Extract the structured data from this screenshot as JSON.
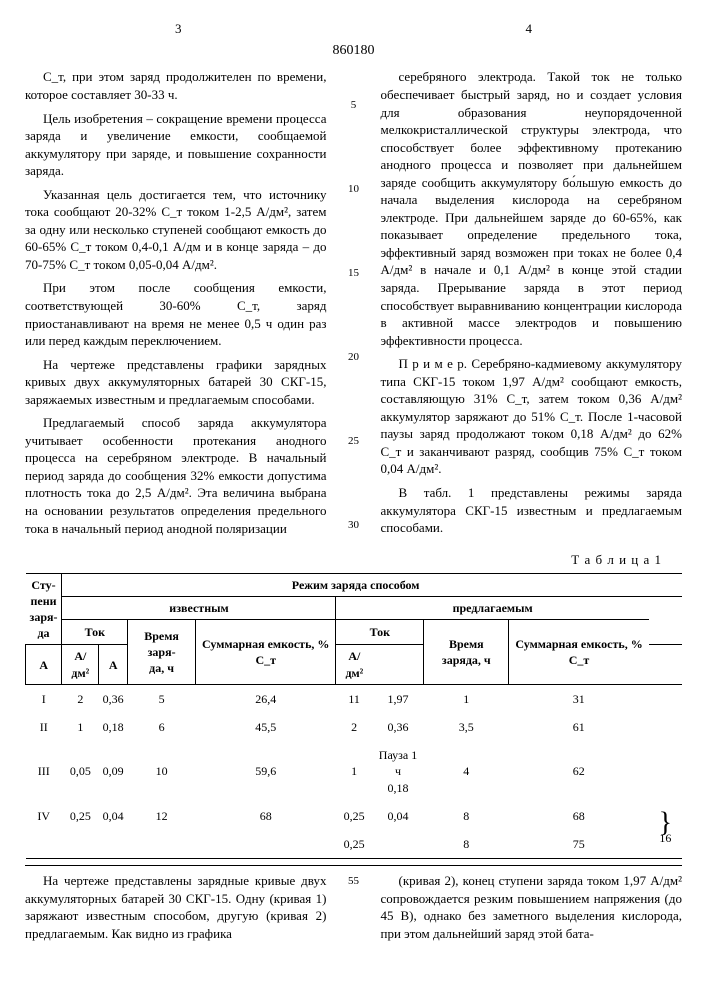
{
  "header": {
    "pageLeft": "3",
    "docNumber": "860180",
    "pageRight": "4"
  },
  "lineNumbers": [
    "5",
    "10",
    "15",
    "20",
    "25",
    "30"
  ],
  "leftCol": {
    "p1": "С_т, при этом заряд продолжителен по времени, которое составляет 30-33 ч.",
    "p2": "Цель изобретения – сокращение времени процесса заряда и увеличение емкости, сообщаемой аккумулятору при заряде, и повышение сохранности заряда.",
    "p3": "Указанная цель достигается тем, что источнику тока сообщают 20-32% С_т током 1-2,5 А/дм², затем за одну или несколько ступеней сообщают емкость до 60-65% С_т током 0,4-0,1 А/дм и в конце заряда – до 70-75% С_т током 0,05-0,04 А/дм².",
    "p4": "При этом после сообщения емкости, соответствующей 30-60% С_т, заряд приостанавливают на время не менее 0,5 ч один раз или перед каждым переключением.",
    "p5": "На чертеже представлены графики зарядных кривых двух аккумуляторных батарей 30 СКГ-15, заряжаемых известным и предлагаемым способами.",
    "p6": "Предлагаемый способ заряда аккумулятора учитывает особенности протекания анодного процесса на серебряном электроде. В начальный период заряда до сообщения 32% емкости допустима плотность тока до 2,5 А/дм². Эта величина выбрана на основании результатов определения предельного тока в начальный период анодной поляризации"
  },
  "rightCol": {
    "p1": "серебряного электрода. Такой ток не только обеспечивает быстрый заряд, но и создает условия для образования неупорядоченной мелкокристаллической структуры электрода, что способствует более эффективному протеканию анодного процесса и позволяет при дальнейшем заряде сообщить аккумулятору бо́льшую емкость до начала выделения кислорода на серебряном электроде. При дальнейшем заряде до 60-65%, как показывает определение предельного тока, эффективный заряд возможен при токах не более 0,4 А/дм² в начале и 0,1 А/дм² в конце этой стадии заряда. Прерывание заряда в этот период способствует выравниванию концентрации кислорода в активной массе электродов и повышению эффективности процесса.",
    "p2": "П р и м е р. Серебряно-кадмиевому аккумулятору типа СКГ-15 током 1,97 А/дм² сообщают емкость, составляющую 31% С_т, затем током 0,36 А/дм² аккумулятор заряжают до 51% С_т. После 1-часовой паузы заряд продолжают током 0,18 А/дм² до 62% С_т и заканчивают разряд, сообщив 75% С_т током 0,04 А/дм².",
    "p3": "В табл. 1 представлены режимы заряда аккумулятора СКГ-15 известным и предлагаемым способами."
  },
  "table": {
    "title": "Т а б л и ц а   1",
    "head": {
      "mode": "Режим заряда способом",
      "steps": "Сту-\nпени\nзаря-\nда",
      "known": "известным",
      "proposed": "предлагаемым",
      "current": "Ток",
      "time": "Время заря-\nда, ч",
      "timeP": "Время заряда, ч",
      "capacity": "Суммарная емкость, % С_т",
      "A": "А",
      "Adm2": "А/дм²"
    },
    "rows": [
      {
        "s": "I",
        "a1": "2",
        "d1": "0,36",
        "t1": "5",
        "c1": "26,4",
        "a2": "11",
        "d2": "1,97",
        "t2": "1",
        "c2": "31"
      },
      {
        "s": "II",
        "a1": "1",
        "d1": "0,18",
        "t1": "6",
        "c1": "45,5",
        "a2": "2",
        "d2": "0,36",
        "t2": "3,5",
        "c2": "61"
      },
      {
        "s": "III",
        "a1": "0,05",
        "d1": "0,09",
        "t1": "10",
        "c1": "59,6",
        "a2": "1",
        "d2": "Пауза  1 ч\n0,18",
        "t2": "4",
        "c2": "62"
      },
      {
        "s": "IV",
        "a1": "0,25",
        "d1": "0,04",
        "t1": "12",
        "c1": "68",
        "a2": "0,25",
        "d2": "0,04",
        "t2": "8",
        "c2": "68"
      },
      {
        "s": "",
        "a1": "",
        "d1": "",
        "t1": "",
        "c1": "",
        "a2": "0,25",
        "d2": "",
        "t2": "8",
        "c2": "75"
      }
    ],
    "braceVal": "16"
  },
  "bottom": {
    "ln": "55",
    "left": "На чертеже представлены зарядные кривые двух аккумуляторных батарей 30 СКГ-15. Одну (кривая 1) заряжают известным способом, другую (кривая 2) предлагаемым. Как видно из графика",
    "right": "(кривая 2), конец ступени заряда током 1,97 А/дм² сопровождается резким повышением напряжения (до 45 В), однако без заметного выделения кислорода, при этом дальнейший заряд этой бата-"
  }
}
